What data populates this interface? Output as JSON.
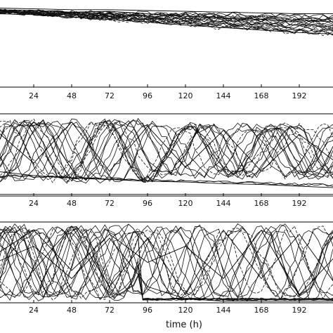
{
  "chart_data": [
    {
      "type": "line",
      "panel": "top",
      "x_ticks": [
        "24",
        "48",
        "72",
        "96",
        "120",
        "144",
        "168",
        "192",
        "2"
      ],
      "xlim": [
        0,
        216
      ],
      "ylim": [
        0,
        1
      ],
      "grid": false,
      "trace_count": 20,
      "series": [
        {
          "x": [
            0,
            24,
            48,
            72,
            96,
            120,
            144,
            168,
            192,
            216
          ],
          "y": [
            0.95,
            0.94,
            0.92,
            0.93,
            0.9,
            0.87,
            0.85,
            0.83,
            0.82,
            0.8
          ]
        },
        {
          "x": [
            0,
            24,
            48,
            72,
            96,
            120,
            144,
            168,
            192,
            216
          ],
          "y": [
            0.97,
            0.96,
            0.95,
            0.95,
            0.94,
            0.93,
            0.92,
            0.91,
            0.9,
            0.9
          ]
        },
        {
          "x": [
            0,
            24,
            48,
            72,
            96,
            120,
            144,
            168,
            192,
            216
          ],
          "y": [
            0.9,
            0.89,
            0.86,
            0.83,
            0.8,
            0.76,
            0.73,
            0.7,
            0.67,
            0.65
          ]
        }
      ]
    },
    {
      "type": "line",
      "panel": "middle",
      "x_ticks": [
        "24",
        "48",
        "72",
        "96",
        "120",
        "144",
        "168",
        "192",
        "2"
      ],
      "xlim": [
        0,
        216
      ],
      "ylim": [
        0,
        1
      ],
      "grid": false,
      "trace_count": 20,
      "series": [
        {
          "x": [
            0,
            24,
            48,
            72,
            96,
            120,
            144,
            168,
            192,
            216
          ],
          "y": [
            0.8,
            0.4,
            0.9,
            0.3,
            0.85,
            0.35,
            0.8,
            0.3,
            0.75,
            0.4
          ]
        },
        {
          "x": [
            0,
            24,
            48,
            72,
            96,
            120,
            144,
            168,
            192,
            216
          ],
          "y": [
            0.3,
            0.25,
            0.22,
            0.2,
            0.18,
            0.17,
            0.15,
            0.14,
            0.12,
            0.1
          ]
        },
        {
          "x": [
            0,
            24,
            48,
            72,
            96,
            120,
            144,
            168,
            192,
            216
          ],
          "y": [
            0.02,
            0.02,
            0.02,
            0.02,
            0.02,
            0.02,
            0.02,
            0.02,
            0.02,
            0.02
          ]
        }
      ]
    },
    {
      "type": "line",
      "panel": "bottom",
      "x_ticks": [
        "24",
        "48",
        "72",
        "96",
        "120",
        "144",
        "168",
        "192",
        "2"
      ],
      "xlim": [
        0,
        216
      ],
      "ylim": [
        0,
        1
      ],
      "grid": false,
      "trace_count": 20,
      "xlabel": "time (h)",
      "series": [
        {
          "x": [
            0,
            24,
            48,
            72,
            96,
            120,
            144,
            168,
            192,
            216
          ],
          "y": [
            0.9,
            0.4,
            0.95,
            0.2,
            0.8,
            0.1,
            0.9,
            0.3,
            0.85,
            0.2
          ]
        },
        {
          "x": [
            0,
            24,
            48,
            72,
            96,
            120,
            144,
            168,
            192,
            216
          ],
          "y": [
            0.5,
            0.7,
            0.3,
            0.8,
            0.2,
            0.05,
            0.02,
            0.02,
            0.02,
            0.02
          ]
        },
        {
          "x": [
            0,
            24,
            48,
            72,
            96,
            120,
            144,
            168,
            192,
            216
          ],
          "y": [
            0.6,
            0.9,
            0.4,
            0.85,
            0.5,
            0.7,
            0.3,
            0.9,
            0.1,
            0.6
          ]
        }
      ]
    }
  ]
}
